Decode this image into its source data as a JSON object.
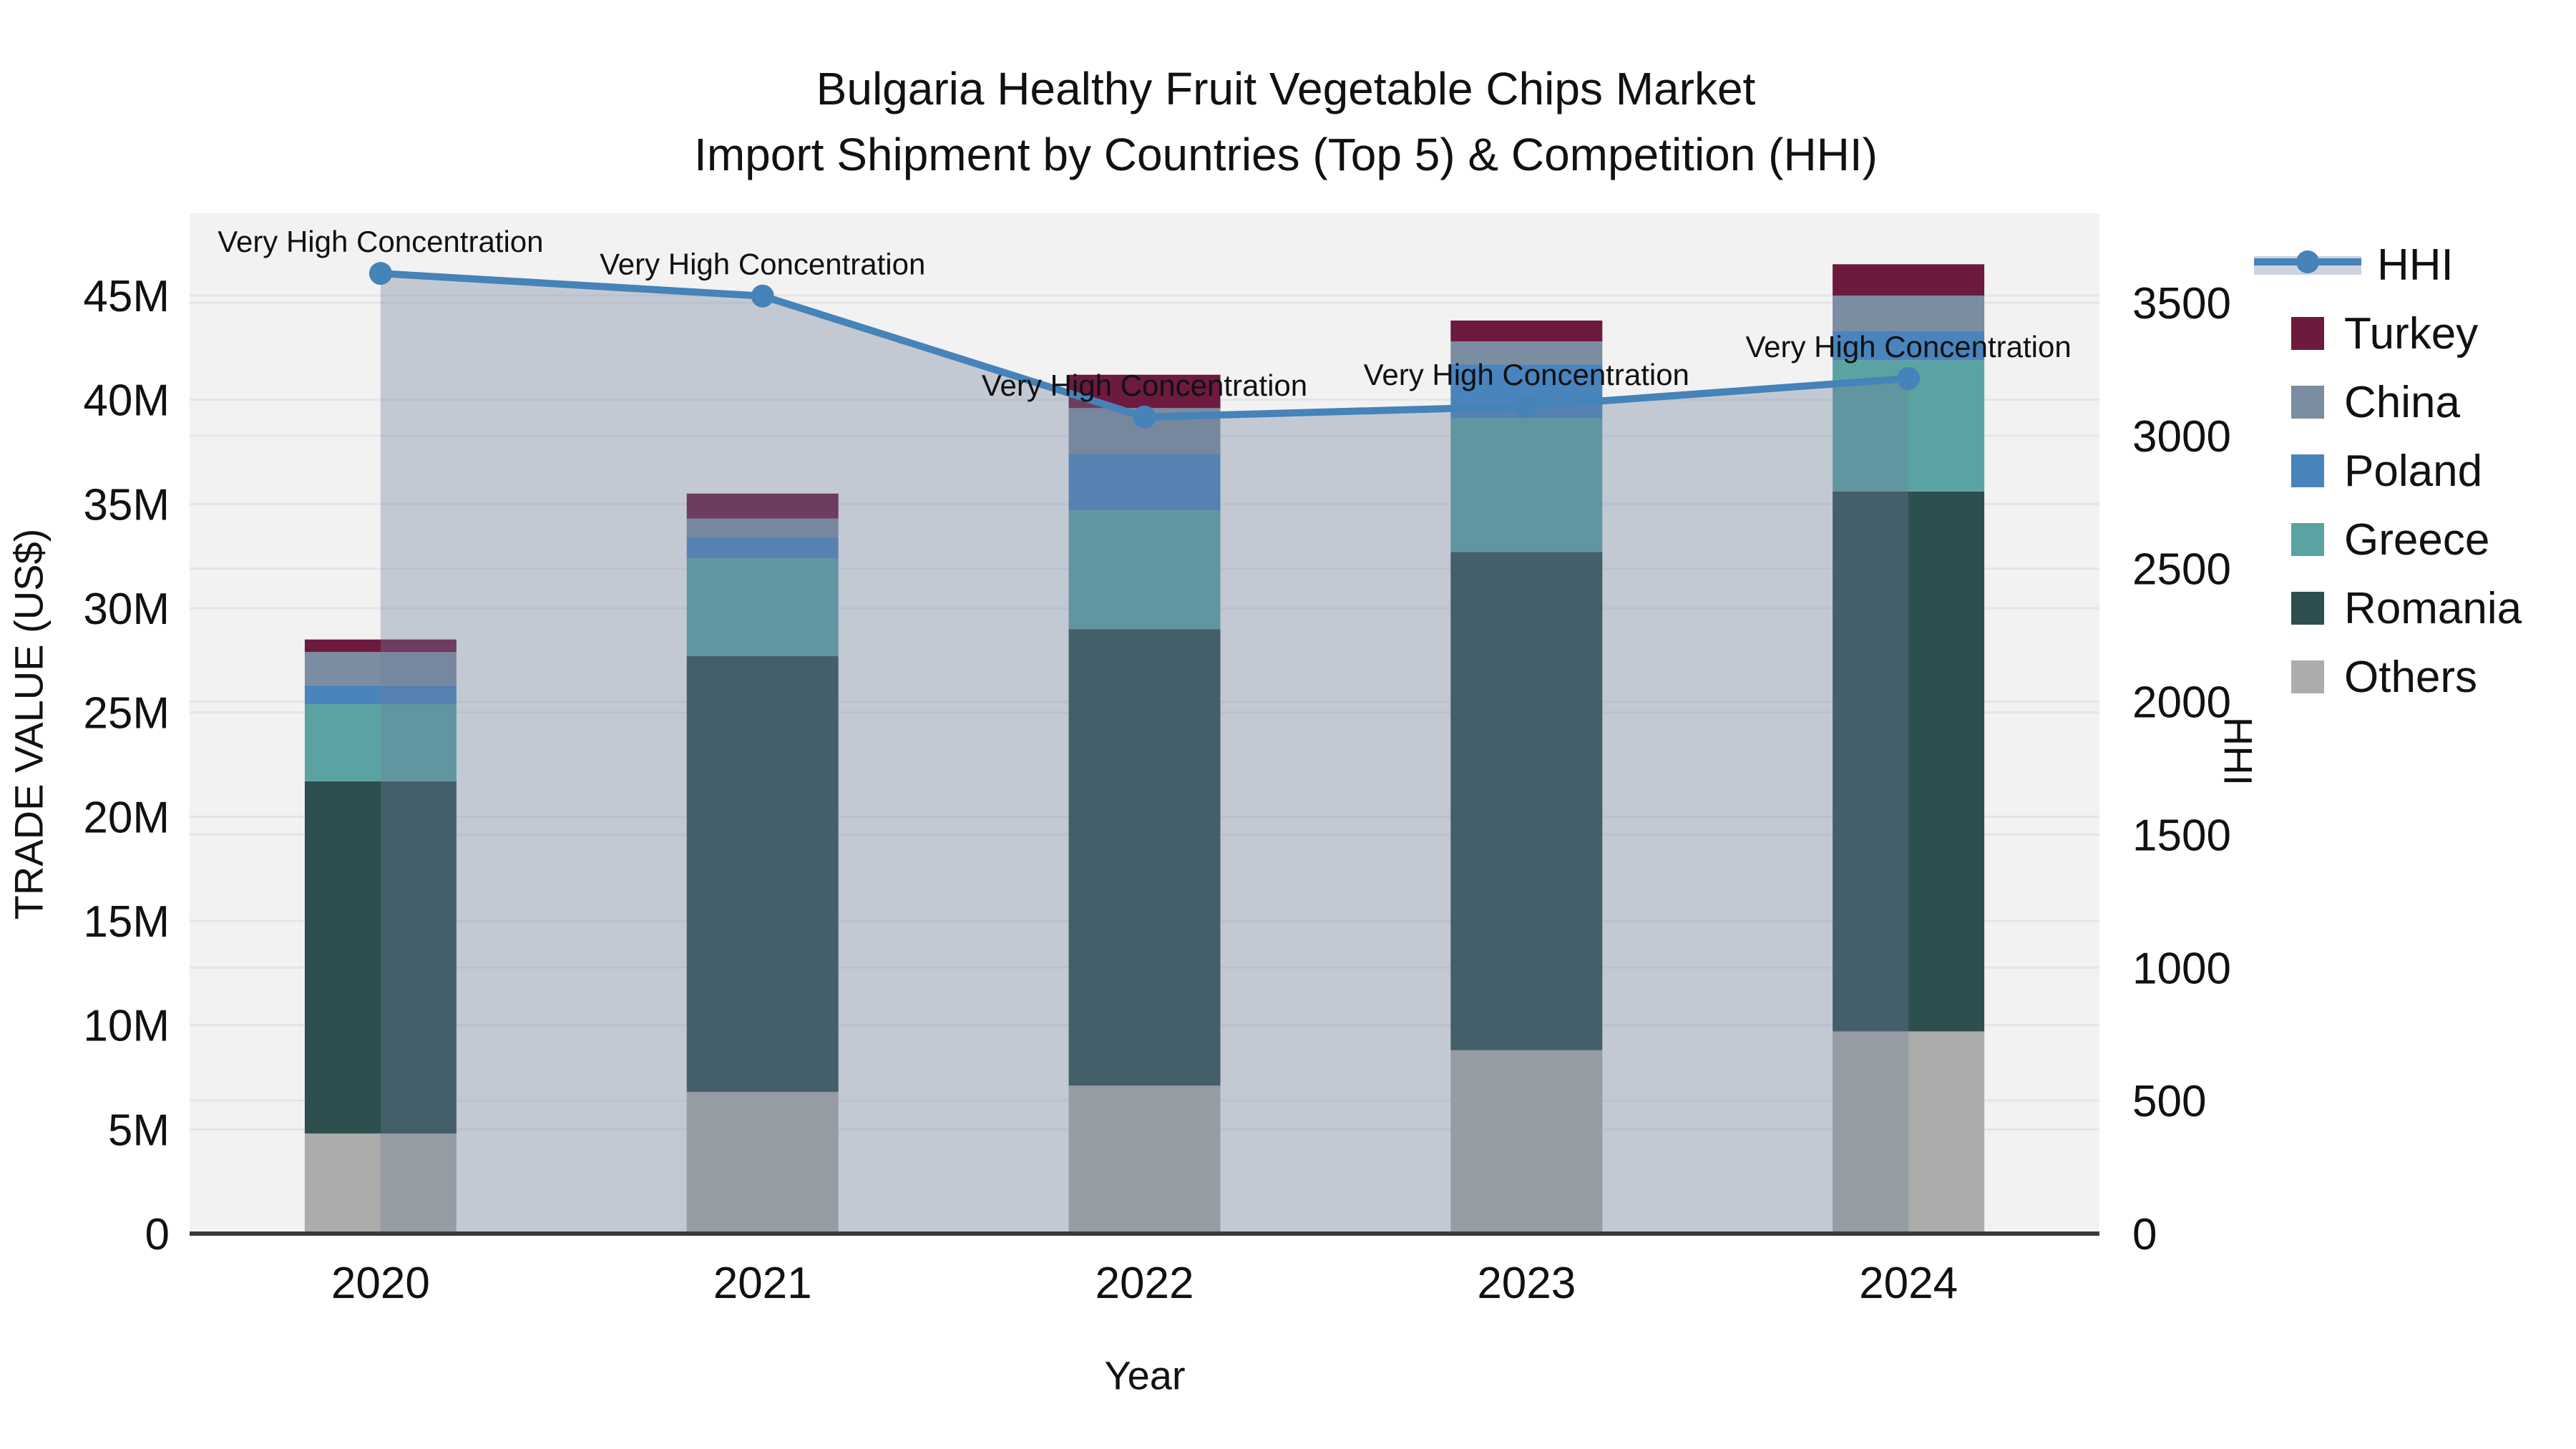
{
  "title": {
    "line1": "Bulgaria Healthy Fruit Vegetable Chips Market",
    "line2": "Import Shipment by Countries (Top 5) & Competition (HHI)"
  },
  "axes": {
    "x": {
      "title": "Year",
      "categories": [
        "2020",
        "2021",
        "2022",
        "2023",
        "2024"
      ]
    },
    "y_left": {
      "title": "TRADE VALUE (US$)",
      "ticks": [
        {
          "label": "0",
          "value": 0
        },
        {
          "label": "5M",
          "value": 5
        },
        {
          "label": "10M",
          "value": 10
        },
        {
          "label": "15M",
          "value": 15
        },
        {
          "label": "20M",
          "value": 20
        },
        {
          "label": "25M",
          "value": 25
        },
        {
          "label": "30M",
          "value": 30
        },
        {
          "label": "35M",
          "value": 35
        },
        {
          "label": "40M",
          "value": 40
        },
        {
          "label": "45M",
          "value": 45
        }
      ]
    },
    "y_right": {
      "title": "HHI",
      "ticks": [
        {
          "label": "0",
          "value": 0
        },
        {
          "label": "500",
          "value": 500
        },
        {
          "label": "1000",
          "value": 1000
        },
        {
          "label": "1500",
          "value": 1500
        },
        {
          "label": "2000",
          "value": 2000
        },
        {
          "label": "2500",
          "value": 2500
        },
        {
          "label": "3000",
          "value": 3000
        },
        {
          "label": "3500",
          "value": 3500
        }
      ]
    }
  },
  "legend": {
    "items": [
      {
        "label": "HHI",
        "type": "line"
      },
      {
        "label": "Turkey",
        "type": "swatch",
        "color": "#6d1a3f"
      },
      {
        "label": "China",
        "type": "swatch",
        "color": "#7b8da0"
      },
      {
        "label": "Poland",
        "type": "swatch",
        "color": "#4a84bd"
      },
      {
        "label": "Greece",
        "type": "swatch",
        "color": "#5ba3a3"
      },
      {
        "label": "Romania",
        "type": "swatch",
        "color": "#2e4f4f"
      },
      {
        "label": "Others",
        "type": "swatch",
        "color": "#acacaa"
      }
    ]
  },
  "annotations": {
    "text": "Very High Concentration"
  },
  "colors": {
    "hhi_line": "#4583b8",
    "hhi_fill": "#6e7d9b",
    "hhi_fill_alpha": 0.35,
    "plot_bg": "#f2f2f2",
    "gridline": "#e3e5e8",
    "axis_line": "#3a3a3a",
    "turkey": "#6d1a3f",
    "china": "#7b8da0",
    "poland": "#4a84bd",
    "greece": "#5ba3a3",
    "romania": "#2e4f4f",
    "others": "#acacaa"
  },
  "chart_data": {
    "type": "bar",
    "subtype": "stacked bars (trade value, left axis) + HHI line with shaded area (right axis)",
    "categories": [
      "2020",
      "2021",
      "2022",
      "2023",
      "2024"
    ],
    "value_unit": "million US$",
    "stack_order_bottom_to_top": [
      "Others",
      "Romania",
      "Greece",
      "Poland",
      "China",
      "Turkey"
    ],
    "series": [
      {
        "name": "Turkey",
        "values": [
          0.6,
          1.2,
          1.6,
          1.0,
          1.5
        ]
      },
      {
        "name": "China",
        "values": [
          1.6,
          0.9,
          2.2,
          1.1,
          1.7
        ]
      },
      {
        "name": "Poland",
        "values": [
          0.9,
          1.0,
          2.7,
          2.6,
          1.4
        ]
      },
      {
        "name": "Greece",
        "values": [
          3.7,
          4.7,
          5.7,
          6.4,
          6.3
        ]
      },
      {
        "name": "Romania",
        "values": [
          16.9,
          20.9,
          21.9,
          23.9,
          25.9
        ]
      },
      {
        "name": "Others",
        "values": [
          4.8,
          6.8,
          7.1,
          8.8,
          9.7
        ]
      }
    ],
    "bar_totals": [
      28.5,
      35.5,
      41.2,
      43.8,
      46.5
    ],
    "line_series": {
      "name": "HHI",
      "axis": "right",
      "values": [
        3610,
        3525,
        3070,
        3110,
        3215
      ]
    },
    "point_annotations": [
      "Very High Concentration",
      "Very High Concentration",
      "Very High Concentration",
      "Very High Concentration",
      "Very High Concentration"
    ],
    "y_left_range_label": "0 to 45M",
    "y_right_range_label": "0 to 3500",
    "grid": true,
    "legend_position": "right"
  }
}
